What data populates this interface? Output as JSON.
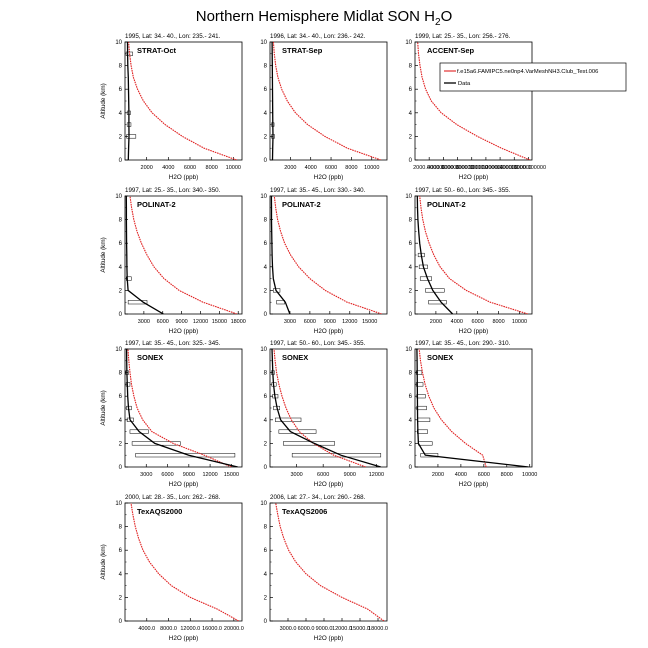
{
  "figure": {
    "title": "Northern Hemisphere Midlat SON H",
    "title_sub": "2",
    "title_tail": "O",
    "xlabel": "H2O (ppb)",
    "ylabel": "Altitude (km)",
    "legend": {
      "model": "f.e15a6.FAMIPC5.ne0np4.VarMeshNH3.Club_Test.006",
      "data": "Data",
      "model_color": "#e02020",
      "data_color": "#000000"
    }
  },
  "chart_data": [
    {
      "type": "line",
      "title": "1995, Lat: 34.- 40., Lon: 235.- 241.",
      "campaign": "STRAT-Oct",
      "xlim": [
        0,
        10800
      ],
      "ylim": [
        0,
        10
      ],
      "xticks": [
        2000,
        4000,
        6000,
        8000,
        10000
      ],
      "xtick_labels": [
        "2000",
        "4000",
        "6000",
        "8000",
        "10000"
      ],
      "model": {
        "x": [
          10300,
          7300,
          5300,
          3700,
          2500,
          1700,
          1150,
          780,
          560,
          420,
          330
        ],
        "y": [
          0,
          1,
          2,
          3,
          4,
          5,
          6,
          7,
          8,
          9,
          10
        ]
      },
      "data": {
        "x": [
          300,
          330,
          370,
          360,
          360,
          340,
          320,
          300,
          260,
          240,
          230
        ],
        "y": [
          0,
          1,
          2,
          3,
          4,
          5,
          6,
          7,
          8,
          9,
          10
        ]
      },
      "boxes": [
        {
          "y": 2,
          "x0": 150,
          "x1": 1000
        },
        {
          "y": 3,
          "x0": 200,
          "x1": 550
        },
        {
          "y": 4,
          "x0": 200,
          "x1": 500
        },
        {
          "y": 9,
          "x0": 100,
          "x1": 700
        }
      ]
    },
    {
      "type": "line",
      "title": "1996, Lat: 34.- 40., Lon: 236.- 242.",
      "campaign": "STRAT-Sep",
      "xlim": [
        0,
        11500
      ],
      "ylim": [
        0,
        10
      ],
      "xticks": [
        2000,
        4000,
        6000,
        8000,
        10000
      ],
      "xtick_labels": [
        "2000",
        "4000",
        "6000",
        "8000",
        "10000"
      ],
      "model": {
        "x": [
          10900,
          7600,
          5400,
          3700,
          2500,
          1700,
          1150,
          780,
          560,
          420,
          330
        ],
        "y": [
          0,
          1,
          2,
          3,
          4,
          5,
          6,
          7,
          8,
          9,
          10
        ]
      },
      "data": {
        "x": [
          250,
          270,
          290,
          280,
          270,
          260,
          250,
          240,
          230,
          220,
          210
        ],
        "y": [
          0,
          1,
          2,
          3,
          4,
          5,
          6,
          7,
          8,
          9,
          10
        ]
      },
      "boxes": [
        {
          "y": 2,
          "x0": 150,
          "x1": 450
        },
        {
          "y": 3,
          "x0": 150,
          "x1": 400
        }
      ]
    },
    {
      "type": "line",
      "title": "1999, Lat: 25.- 35., Lon: 256.- 276.",
      "campaign": "ACCENT-Sep",
      "xlim": [
        0,
        16500
      ],
      "ylim": [
        0,
        10
      ],
      "xticks": [
        2000,
        4000,
        6000,
        8000,
        10000,
        12000,
        14000,
        16000
      ],
      "xtick_labels": [
        "2000.000000",
        "4000.000000",
        "6000.000000",
        "8000.000000",
        "10000.000000",
        "12000.000000",
        "14000.000000",
        "16000.000000"
      ],
      "model": {
        "x": [
          16200,
          12200,
          8800,
          5900,
          3700,
          2300,
          1500,
          1000,
          700,
          500,
          380
        ],
        "y": [
          0,
          1,
          2,
          3,
          4,
          5,
          6,
          7,
          8,
          9,
          10
        ]
      },
      "data": null,
      "boxes": []
    },
    {
      "type": "line",
      "title": "1997, Lat: 25.- 35., Lon: 340.- 350.",
      "campaign": "POLINAT-2",
      "xlim": [
        0,
        18600
      ],
      "ylim": [
        0,
        10
      ],
      "xticks": [
        3000,
        6000,
        9000,
        12000,
        15000,
        18000
      ],
      "xtick_labels": [
        "3000",
        "6000",
        "9000",
        "12000",
        "15000",
        "18000"
      ],
      "model": {
        "x": [
          17800,
          12400,
          8600,
          6200,
          4600,
          3500,
          2600,
          1900,
          1400,
          1050,
          800
        ],
        "y": [
          0,
          1,
          2,
          3,
          4,
          5,
          6,
          7,
          8,
          9,
          10
        ]
      },
      "data": {
        "x": [
          6100,
          2900,
          500,
          350,
          300,
          280,
          260,
          240,
          230,
          220,
          210
        ],
        "y": [
          0,
          1,
          2,
          3,
          4,
          5,
          6,
          7,
          8,
          9,
          10
        ]
      },
      "boxes": [
        {
          "y": 1,
          "x0": 500,
          "x1": 3500
        },
        {
          "y": 3,
          "x0": 200,
          "x1": 1000
        }
      ]
    },
    {
      "type": "line",
      "title": "1997, Lat: 35.- 45., Lon: 330.- 340.",
      "campaign": "POLINAT-2",
      "xlim": [
        0,
        17600
      ],
      "ylim": [
        0,
        10
      ],
      "xticks": [
        3000,
        6000,
        9000,
        12000,
        15000
      ],
      "xtick_labels": [
        "3000",
        "6000",
        "9000",
        "12000",
        "15000"
      ],
      "model": {
        "x": [
          16800,
          11600,
          8300,
          6000,
          4300,
          3100,
          2200,
          1600,
          1150,
          850,
          650
        ],
        "y": [
          0,
          1,
          2,
          3,
          4,
          5,
          6,
          7,
          8,
          9,
          10
        ]
      },
      "data": {
        "x": [
          3000,
          2300,
          900,
          500,
          380,
          320,
          280,
          250,
          230,
          220,
          210
        ],
        "y": [
          0,
          1,
          2,
          3,
          4,
          5,
          6,
          7,
          8,
          9,
          10
        ]
      },
      "boxes": [
        {
          "y": 1,
          "x0": 1000,
          "x1": 2200
        },
        {
          "y": 2,
          "x0": 500,
          "x1": 1500
        }
      ]
    },
    {
      "type": "line",
      "title": "1997, Lat: 50.- 60., Lon: 345.- 355.",
      "campaign": "POLINAT-2",
      "xlim": [
        0,
        11200
      ],
      "ylim": [
        0,
        10
      ],
      "xticks": [
        2000,
        4000,
        6000,
        8000,
        10000
      ],
      "xtick_labels": [
        "2000",
        "4000",
        "6000",
        "8000",
        "10000"
      ],
      "model": {
        "x": [
          10800,
          7200,
          4900,
          3300,
          2400,
          1800,
          1350,
          1000,
          750,
          570,
          450
        ],
        "y": [
          0,
          1,
          2,
          3,
          4,
          5,
          6,
          7,
          8,
          9,
          10
        ]
      },
      "data": {
        "x": [
          3600,
          2500,
          1700,
          1200,
          800,
          600,
          450,
          350,
          280,
          240,
          220
        ],
        "y": [
          0,
          1,
          2,
          3,
          4,
          5,
          6,
          7,
          8,
          9,
          10
        ]
      },
      "boxes": [
        {
          "y": 1,
          "x0": 1300,
          "x1": 3000
        },
        {
          "y": 2,
          "x0": 1000,
          "x1": 2800
        },
        {
          "y": 3,
          "x0": 500,
          "x1": 1600
        },
        {
          "y": 4,
          "x0": 400,
          "x1": 1200
        },
        {
          "y": 5,
          "x0": 300,
          "x1": 900
        }
      ]
    },
    {
      "type": "line",
      "title": "1997, Lat: 35.- 45., Lon: 325.- 345.",
      "campaign": "SONEX",
      "xlim": [
        0,
        16500
      ],
      "ylim": [
        0,
        10
      ],
      "xticks": [
        3000,
        6000,
        9000,
        12000,
        15000
      ],
      "xtick_labels": [
        "3000",
        "6000",
        "9000",
        "12000",
        "15000"
      ],
      "model": {
        "x": [
          15000,
          11200,
          6800,
          3800,
          2500,
          1700,
          1250,
          920,
          700,
          540,
          420
        ],
        "y": [
          0,
          1,
          2,
          3,
          4,
          5,
          6,
          7,
          8,
          9,
          10
        ]
      },
      "data": {
        "x": [
          15900,
          9000,
          4200,
          2000,
          700,
          500,
          380,
          320,
          270,
          240,
          220
        ],
        "y": [
          0,
          1,
          2,
          3,
          4,
          5,
          6,
          7,
          8,
          9,
          10
        ]
      },
      "boxes": [
        {
          "y": 1,
          "x0": 1500,
          "x1": 15500
        },
        {
          "y": 2,
          "x0": 1000,
          "x1": 7800
        },
        {
          "y": 3,
          "x0": 700,
          "x1": 3300
        },
        {
          "y": 4,
          "x0": 300,
          "x1": 1200
        },
        {
          "y": 5,
          "x0": 200,
          "x1": 900
        },
        {
          "y": 7,
          "x0": 150,
          "x1": 700
        },
        {
          "y": 8,
          "x0": 100,
          "x1": 500
        }
      ]
    },
    {
      "type": "line",
      "title": "1997, Lat: 50.- 60., Lon: 345.- 355.",
      "campaign": "SONEX",
      "xlim": [
        0,
        13200
      ],
      "ylim": [
        0,
        10
      ],
      "xticks": [
        3000,
        6000,
        9000,
        12000
      ],
      "xtick_labels": [
        "3000",
        "6000",
        "9000",
        "12000"
      ],
      "model": {
        "x": [
          10800,
          7200,
          4900,
          3300,
          2400,
          1800,
          1350,
          1000,
          750,
          570,
          450
        ],
        "y": [
          0,
          1,
          2,
          3,
          4,
          5,
          6,
          7,
          8,
          9,
          10
        ]
      },
      "data": {
        "x": [
          12500,
          8000,
          5000,
          2300,
          1200,
          800,
          550,
          400,
          320,
          270,
          230
        ],
        "y": [
          0,
          1,
          2,
          3,
          4,
          5,
          6,
          7,
          8,
          9,
          10
        ]
      },
      "boxes": [
        {
          "y": 1,
          "x0": 2500,
          "x1": 12500
        },
        {
          "y": 2,
          "x0": 1500,
          "x1": 7300
        },
        {
          "y": 3,
          "x0": 1000,
          "x1": 5200
        },
        {
          "y": 4,
          "x0": 600,
          "x1": 3500
        },
        {
          "y": 5,
          "x0": 400,
          "x1": 1100
        },
        {
          "y": 6,
          "x0": 300,
          "x1": 900
        },
        {
          "y": 7,
          "x0": 200,
          "x1": 700
        },
        {
          "y": 8,
          "x0": 150,
          "x1": 500
        }
      ]
    },
    {
      "type": "line",
      "title": "1997, Lat: 35.- 45., Lon: 290.- 310.",
      "campaign": "SONEX",
      "xlim": [
        0,
        10200
      ],
      "ylim": [
        0,
        10
      ],
      "xticks": [
        2000,
        4000,
        6000,
        8000,
        10000
      ],
      "xtick_labels": [
        "2000",
        "4000",
        "6000",
        "8000",
        "10000"
      ],
      "model": {
        "x": [
          6200,
          5900,
          4400,
          3200,
          2300,
          1650,
          1200,
          880,
          650,
          480,
          370
        ],
        "y": [
          0,
          1,
          2,
          3,
          4,
          5,
          6,
          7,
          8,
          9,
          10
        ]
      },
      "data": {
        "x": [
          9900,
          900,
          300,
          250,
          230,
          220,
          210,
          200,
          190,
          180,
          170
        ],
        "y": [
          0,
          1,
          2,
          3,
          4,
          5,
          6,
          7,
          8,
          9,
          10
        ]
      },
      "boxes": [
        {
          "y": 1,
          "x0": 500,
          "x1": 2000
        },
        {
          "y": 2,
          "x0": 300,
          "x1": 1500
        },
        {
          "y": 3,
          "x0": 200,
          "x1": 1100
        },
        {
          "y": 4,
          "x0": 200,
          "x1": 1300
        },
        {
          "y": 5,
          "x0": 150,
          "x1": 1000
        },
        {
          "y": 6,
          "x0": 150,
          "x1": 900
        },
        {
          "y": 7,
          "x0": 100,
          "x1": 700
        },
        {
          "y": 8,
          "x0": 100,
          "x1": 600
        }
      ]
    },
    {
      "type": "line",
      "title": "2000, Lat: 28.- 35., Lon: 262.- 268.",
      "campaign": "TexAQS2000",
      "xlim": [
        0,
        21500
      ],
      "ylim": [
        0,
        10
      ],
      "xticks": [
        4000,
        8000,
        12000,
        16000,
        20000
      ],
      "xtick_labels": [
        "4000.0",
        "8000.0",
        "12000.0",
        "16000.0",
        "20000.0"
      ],
      "model": {
        "x": [
          20900,
          17000,
          12000,
          8500,
          6200,
          4500,
          3300,
          2500,
          1900,
          1450,
          1100
        ],
        "y": [
          0,
          1,
          2,
          3,
          4,
          5,
          6,
          7,
          8,
          9,
          10
        ]
      },
      "data": null,
      "boxes": []
    },
    {
      "type": "line",
      "title": "2006, Lat: 27.- 34., Lon: 260.- 268.",
      "campaign": "TexAQS2006",
      "xlim": [
        0,
        19500
      ],
      "ylim": [
        0,
        10
      ],
      "xticks": [
        3000,
        6000,
        9000,
        12000,
        15000,
        18000
      ],
      "xtick_labels": [
        "3000.0",
        "6000.0",
        "9000.0",
        "12000.0",
        "15000.0",
        "18000.0"
      ],
      "model": {
        "x": [
          19000,
          16300,
          12000,
          8400,
          6000,
          4300,
          3100,
          2300,
          1700,
          1300,
          950
        ],
        "y": [
          0,
          1,
          2,
          3,
          4,
          5,
          6,
          7,
          8,
          9,
          10
        ]
      },
      "data": null,
      "boxes": []
    }
  ]
}
